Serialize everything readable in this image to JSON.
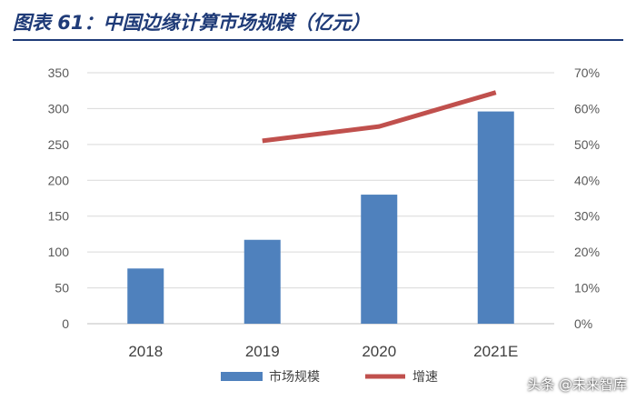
{
  "header": {
    "title": "图表 61：中国边缘计算市场规模（亿元）"
  },
  "watermark": "头条 @未来智库",
  "colors": {
    "bar": "#4f81bd",
    "line": "#c0504d",
    "title": "#1f3b78"
  },
  "chart_data": {
    "type": "bar",
    "title": "",
    "categories": [
      "2018",
      "2019",
      "2020",
      "2021E"
    ],
    "series": [
      {
        "name": "市场规模",
        "type": "bar",
        "axis": "left",
        "values": [
          77,
          117,
          180,
          296
        ]
      },
      {
        "name": "增速",
        "type": "line",
        "axis": "right",
        "values": [
          null,
          0.51,
          0.55,
          0.645
        ]
      }
    ],
    "y_left": {
      "ylim": [
        0,
        350
      ],
      "ticks": [
        "0",
        "50",
        "100",
        "150",
        "200",
        "250",
        "300",
        "350"
      ]
    },
    "y_right": {
      "ylim": [
        0,
        0.7
      ],
      "ticks": [
        "0%",
        "10%",
        "20%",
        "30%",
        "40%",
        "50%",
        "60%",
        "70%"
      ]
    },
    "grid": true,
    "legend": "bottom"
  }
}
